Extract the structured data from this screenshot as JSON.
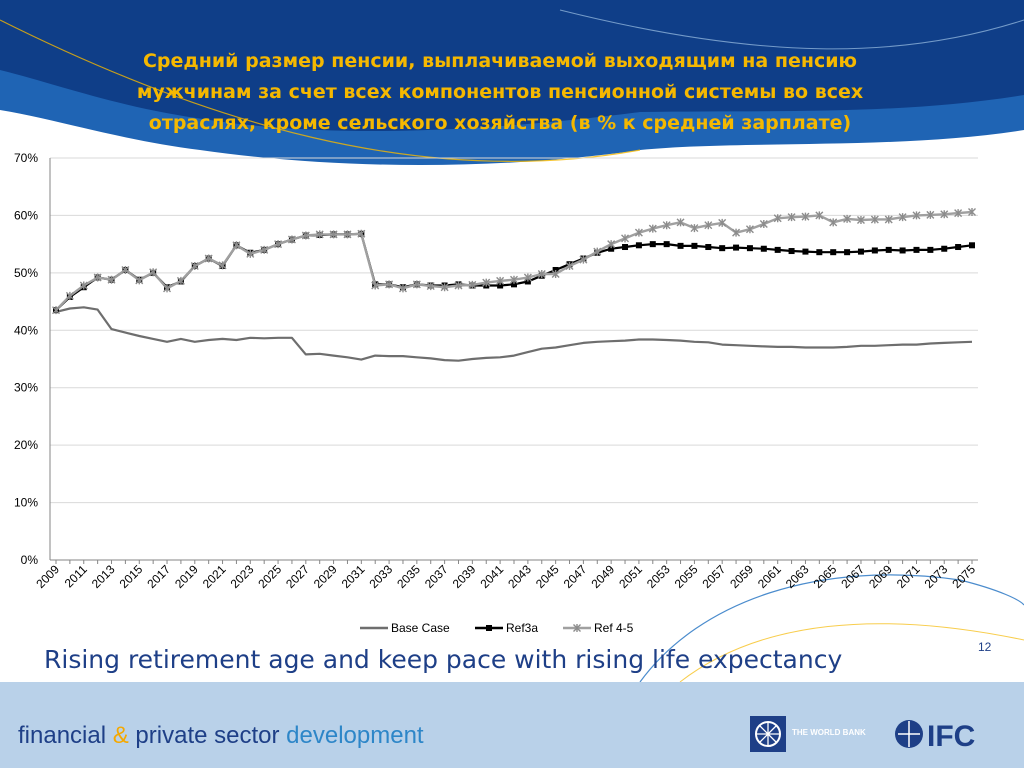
{
  "slide": {
    "title": "Средний размер пенсии, выплачиваемой выходящим на пенсию мужчинам за счет всех компонентов пенсионной системы во всех отраслях, кроме сельского хозяйства (в % к средней зарплате)",
    "subtitle": "Rising retirement age and keep pace with rising life expectancy",
    "slide_number": "12",
    "footer": {
      "part1": "financial",
      "amp": "&",
      "part2": "private sector",
      "part3": "development",
      "wb_label": "THE WORLD BANK",
      "ifc_label": "IFC"
    }
  },
  "colors": {
    "title": "#f5b800",
    "navy": "#1e3f87",
    "footer_bg": "#b9d1e9",
    "base_case": "#6e6e6e",
    "ref3a": "#000000",
    "ref45": "#a0a0a0"
  },
  "chart_data": {
    "type": "line",
    "title": "",
    "xlabel": "",
    "ylabel": "",
    "ylim": [
      0,
      70
    ],
    "y_ticks": [
      "0%",
      "10%",
      "20%",
      "30%",
      "40%",
      "50%",
      "60%",
      "70%"
    ],
    "x_tick_labels": [
      "2009",
      "2011",
      "2013",
      "2015",
      "2017",
      "2019",
      "2021",
      "2023",
      "2025",
      "2027",
      "2029",
      "2031",
      "2033",
      "2035",
      "2037",
      "2039",
      "2041",
      "2043",
      "2045",
      "2047",
      "2049",
      "2051",
      "2053",
      "2055",
      "2057",
      "2059",
      "2061",
      "2063",
      "2065",
      "2067",
      "2069",
      "2071",
      "2073",
      "2075"
    ],
    "grid": "horizontal",
    "legend_position": "bottom",
    "x": [
      2009,
      2010,
      2011,
      2012,
      2013,
      2014,
      2015,
      2016,
      2017,
      2018,
      2019,
      2020,
      2021,
      2022,
      2023,
      2024,
      2025,
      2026,
      2027,
      2028,
      2029,
      2030,
      2031,
      2032,
      2033,
      2034,
      2035,
      2036,
      2037,
      2038,
      2039,
      2040,
      2041,
      2042,
      2043,
      2044,
      2045,
      2046,
      2047,
      2048,
      2049,
      2050,
      2051,
      2052,
      2053,
      2054,
      2055,
      2056,
      2057,
      2058,
      2059,
      2060,
      2061,
      2062,
      2063,
      2064,
      2065,
      2066,
      2067,
      2068,
      2069,
      2070,
      2071,
      2072,
      2073,
      2074,
      2075
    ],
    "series": [
      {
        "name": "Base Case",
        "values": [
          43.2,
          43.8,
          44.0,
          43.6,
          40.2,
          39.6,
          39.0,
          38.5,
          38.0,
          38.5,
          38.0,
          38.3,
          38.5,
          38.3,
          38.7,
          38.6,
          38.7,
          38.7,
          35.8,
          35.9,
          35.6,
          35.3,
          34.9,
          35.6,
          35.5,
          35.5,
          35.3,
          35.1,
          34.8,
          34.7,
          35.0,
          35.2,
          35.3,
          35.6,
          36.2,
          36.8,
          37.0,
          37.4,
          37.8,
          38.0,
          38.1,
          38.2,
          38.4,
          38.4,
          38.3,
          38.2,
          38.0,
          37.9,
          37.5,
          37.4,
          37.3,
          37.2,
          37.1,
          37.1,
          37.0,
          37.0,
          37.0,
          37.1,
          37.3,
          37.3,
          37.4,
          37.5,
          37.5,
          37.7,
          37.8,
          37.9,
          38.0
        ]
      },
      {
        "name": "Ref3a",
        "values": [
          43.5,
          45.8,
          47.5,
          49.2,
          48.8,
          50.5,
          48.8,
          50.0,
          47.5,
          48.5,
          51.2,
          52.5,
          51.2,
          54.8,
          53.5,
          54.0,
          55.0,
          55.8,
          56.5,
          56.6,
          56.7,
          56.7,
          56.8,
          48.0,
          48.0,
          47.5,
          48.0,
          47.8,
          47.8,
          48.0,
          47.8,
          47.8,
          47.8,
          48.0,
          48.5,
          49.5,
          50.5,
          51.5,
          52.5,
          53.5,
          54.2,
          54.5,
          54.8,
          55.0,
          55.0,
          54.7,
          54.7,
          54.5,
          54.3,
          54.4,
          54.3,
          54.2,
          54.0,
          53.8,
          53.7,
          53.6,
          53.6,
          53.6,
          53.7,
          53.9,
          54.0,
          53.9,
          54.0,
          54.0,
          54.2,
          54.5,
          54.8
        ]
      },
      {
        "name": "Ref 4-5",
        "values": [
          43.5,
          46.0,
          47.8,
          49.2,
          48.8,
          50.5,
          48.7,
          50.1,
          47.3,
          48.6,
          51.2,
          52.5,
          51.3,
          54.8,
          53.3,
          54.0,
          55.0,
          55.8,
          56.5,
          56.7,
          56.7,
          56.7,
          56.8,
          47.8,
          48.0,
          47.3,
          48.0,
          47.7,
          47.5,
          47.8,
          47.9,
          48.3,
          48.6,
          48.8,
          49.2,
          49.8,
          49.8,
          51.2,
          52.3,
          53.7,
          55.0,
          56.0,
          57.0,
          57.7,
          58.3,
          58.8,
          57.8,
          58.3,
          58.7,
          57.0,
          57.6,
          58.5,
          59.5,
          59.7,
          59.8,
          60.0,
          58.8,
          59.4,
          59.2,
          59.3,
          59.3,
          59.7,
          60.0,
          60.1,
          60.2,
          60.4,
          60.6
        ]
      }
    ]
  }
}
